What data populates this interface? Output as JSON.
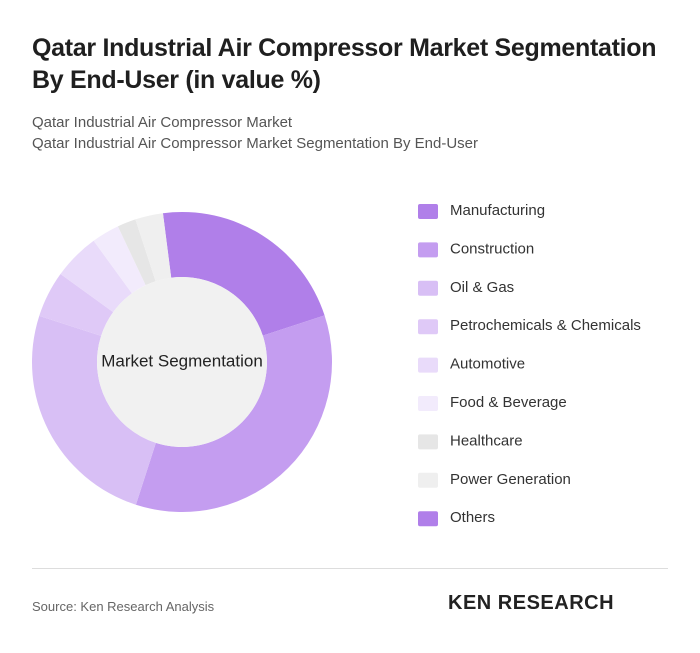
{
  "chart_data": {
    "type": "pie",
    "title": "Qatar Industrial Air Compressor Market Segmentation By End-User (in value %)",
    "subtitles": [
      "Qatar Industrial Air Compressor Market",
      "Qatar Industrial Air Compressor Market Segmentation By End-User"
    ],
    "center_label": "Market Segmentation",
    "categories": [
      "Manufacturing",
      "Construction",
      "Oil & Gas",
      "Petrochemicals & Chemicals",
      "Automotive",
      "Food & Beverage",
      "Healthcare",
      "Power Generation",
      "Others"
    ],
    "values": [
      22,
      35,
      25,
      5,
      5,
      3,
      2,
      3,
      0
    ],
    "colors": [
      "#b07fe9",
      "#c49df0",
      "#d8bff5",
      "#dfc9f7",
      "#e9dbfa",
      "#f2ebfc",
      "#e6e6e6",
      "#efefef",
      "#b07fe9"
    ]
  },
  "source": "Source: Ken Research Analysis",
  "logo": "KEN RESEARCH"
}
